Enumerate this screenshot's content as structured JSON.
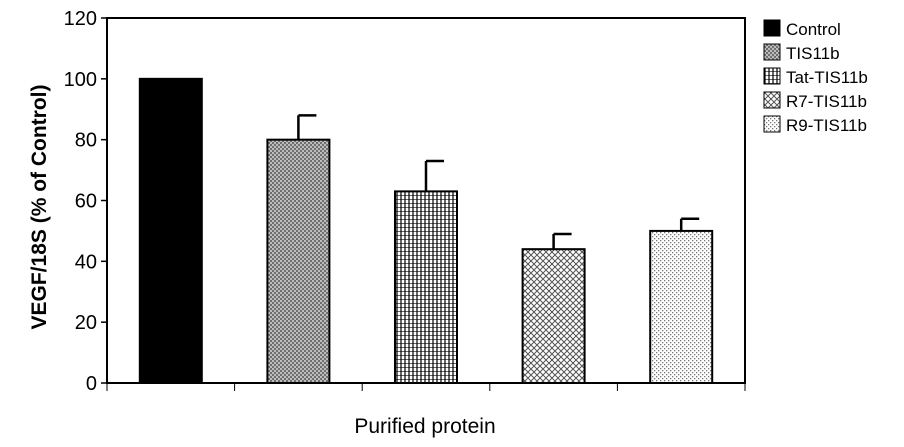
{
  "chart_data": {
    "type": "bar",
    "title": "",
    "xlabel": "Purified protein",
    "ylabel": "VEGF/18S (% of Control)",
    "ylim": [
      0,
      120
    ],
    "yticks": [
      "0",
      "20",
      "40",
      "60",
      "80",
      "100",
      "120"
    ],
    "grid": false,
    "legend_position": "right",
    "series": [
      {
        "name": "Control",
        "value": 100,
        "error": 0,
        "fill": "solid-black"
      },
      {
        "name": "TIS11b",
        "value": 80,
        "error": 8,
        "fill": "dense-crosshatch"
      },
      {
        "name": "Tat-TIS11b",
        "value": 63,
        "error": 10,
        "fill": "vertical-stripes"
      },
      {
        "name": "R7-TIS11b",
        "value": 44,
        "error": 5,
        "fill": "diagonal-crosshatch"
      },
      {
        "name": "R9-TIS11b",
        "value": 50,
        "error": 4,
        "fill": "light-dots"
      }
    ]
  }
}
